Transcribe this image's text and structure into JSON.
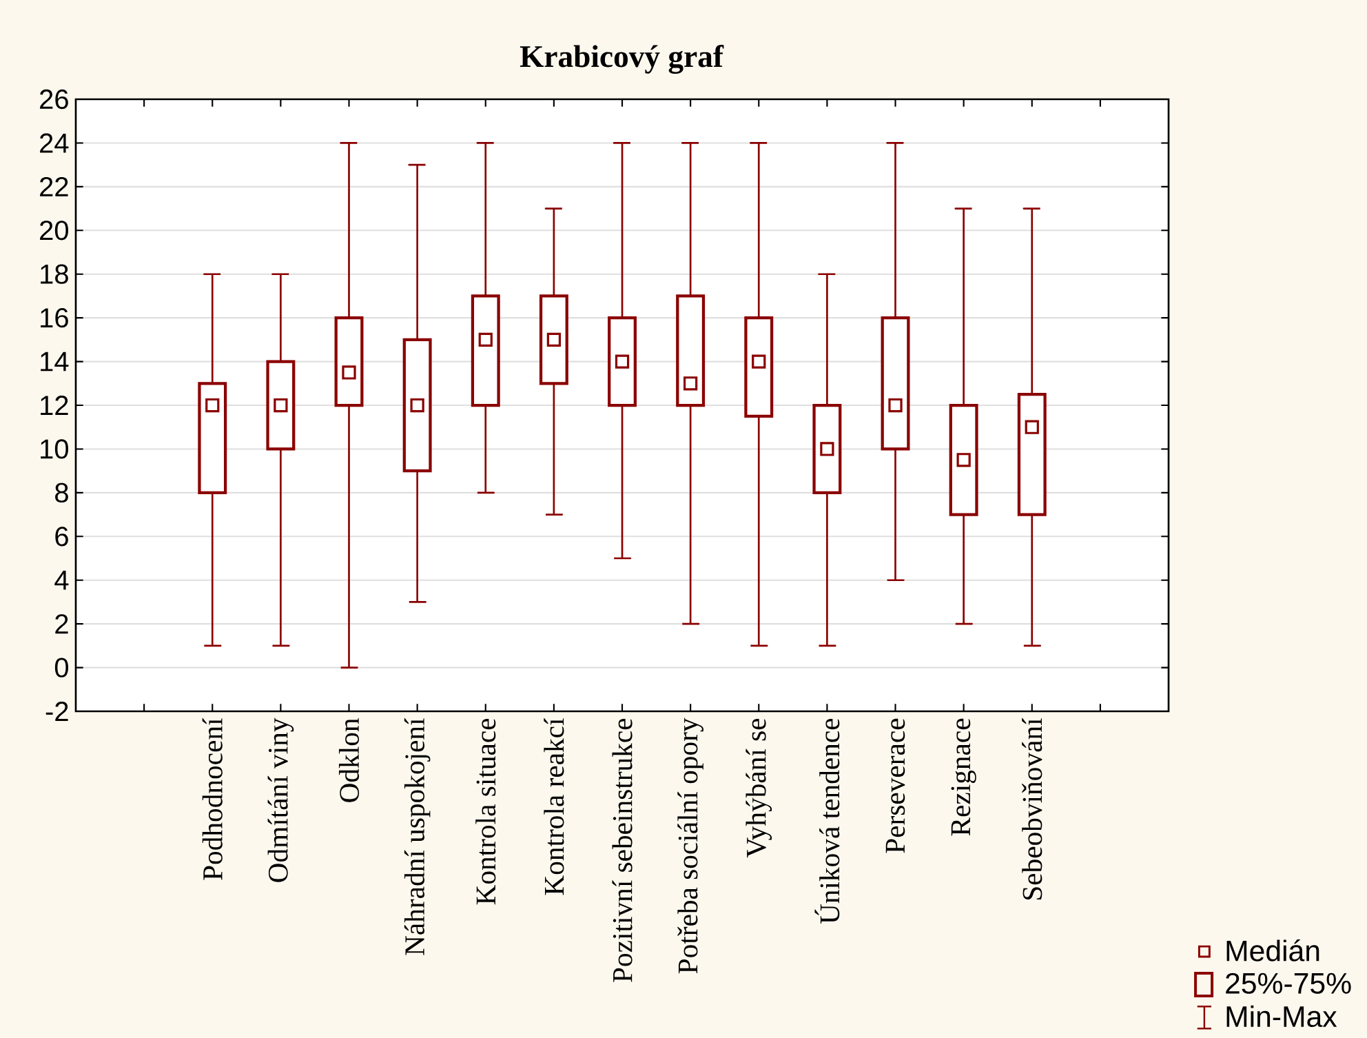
{
  "chart_data": {
    "type": "box",
    "title": "Krabicový graf",
    "categories": [
      "Podhodnocení",
      "Odmítání viny",
      "Odklon",
      "Náhradní uspokojení",
      "Kontrola situace",
      "Kontrola reakcí",
      "Pozitivní sebeinstrukce",
      "Potřeba sociální opory",
      "Vyhýbání se",
      "Úniková tendence",
      "Perseverace",
      "Rezignace",
      "Sebeobviňování"
    ],
    "boxes": [
      {
        "low": 1,
        "q1": 8,
        "median": 12,
        "q3": 13,
        "high": 18
      },
      {
        "low": 1,
        "q1": 10,
        "median": 12,
        "q3": 14,
        "high": 18
      },
      {
        "low": 0,
        "q1": 12,
        "median": 13.5,
        "q3": 16,
        "high": 24
      },
      {
        "low": 3,
        "q1": 9,
        "median": 12,
        "q3": 15,
        "high": 23
      },
      {
        "low": 8,
        "q1": 12,
        "median": 15,
        "q3": 17,
        "high": 24
      },
      {
        "low": 7,
        "q1": 13,
        "median": 15,
        "q3": 17,
        "high": 21
      },
      {
        "low": 5,
        "q1": 12,
        "median": 14,
        "q3": 16,
        "high": 24
      },
      {
        "low": 2,
        "q1": 12,
        "median": 13,
        "q3": 17,
        "high": 24
      },
      {
        "low": 1,
        "q1": 11.5,
        "median": 14,
        "q3": 16,
        "high": 24
      },
      {
        "low": 1,
        "q1": 8,
        "median": 10,
        "q3": 12,
        "high": 18
      },
      {
        "low": 4,
        "q1": 10,
        "median": 12,
        "q3": 16,
        "high": 24
      },
      {
        "low": 2,
        "q1": 7,
        "median": 9.5,
        "q3": 12,
        "high": 21
      },
      {
        "low": 1,
        "q1": 7,
        "median": 11,
        "q3": 12.5,
        "high": 21
      }
    ],
    "color": "#8b0000",
    "ylim": [
      -2,
      26
    ],
    "yticks": [
      -2,
      0,
      2,
      4,
      6,
      8,
      10,
      12,
      14,
      16,
      18,
      20,
      22,
      24,
      26
    ],
    "grid": "y",
    "annotations": [
      "Medián",
      "25%-75%",
      "Min-Max"
    ]
  }
}
